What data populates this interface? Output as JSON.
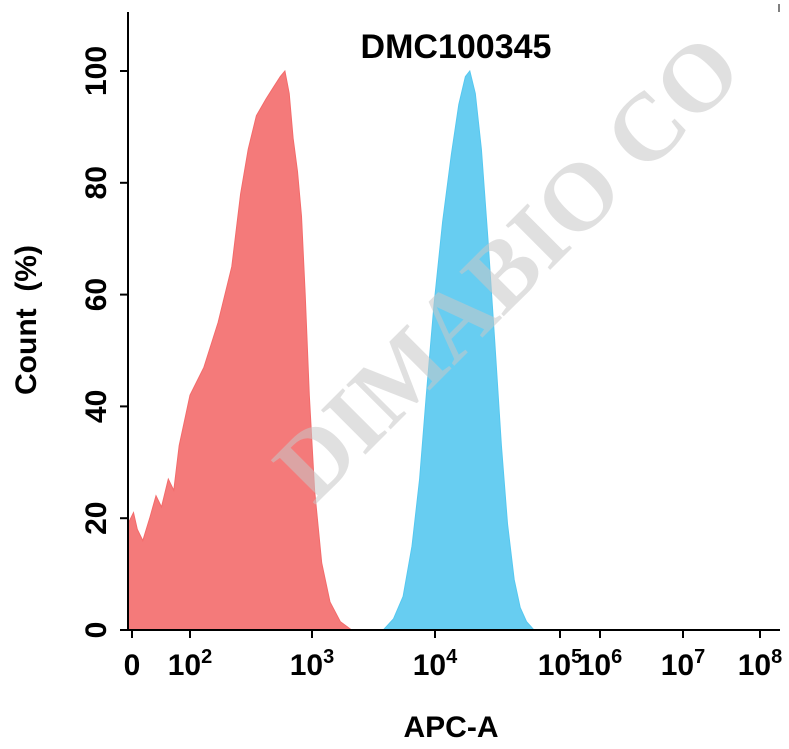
{
  "chart_data": {
    "type": "area",
    "title": "DMC100345",
    "xlabel": "APC-A",
    "ylabel": "Count  (%)",
    "x_scale": "log",
    "ylim": [
      0,
      100
    ],
    "y_ticks": [
      "0",
      "20",
      "40",
      "60",
      "80",
      "100"
    ],
    "x_ticks": [
      {
        "base": "0",
        "exp": ""
      },
      {
        "base": "10",
        "exp": "2"
      },
      {
        "base": "10",
        "exp": "3"
      },
      {
        "base": "10",
        "exp": "4"
      },
      {
        "base": "10",
        "exp": "5"
      },
      {
        "base": "10",
        "exp": "6"
      },
      {
        "base": "10",
        "exp": "7"
      },
      {
        "base": "10",
        "exp": "8"
      }
    ],
    "watermark": "DIMABIO CO",
    "series": [
      {
        "color": "#f36b6b",
        "points": [
          [
            1,
            19
          ],
          [
            1.5,
            21
          ],
          [
            2,
            18
          ],
          [
            3,
            16
          ],
          [
            5,
            20
          ],
          [
            8,
            24
          ],
          [
            12,
            22
          ],
          [
            20,
            27
          ],
          [
            30,
            25
          ],
          [
            45,
            33
          ],
          [
            70,
            38
          ],
          [
            100,
            42
          ],
          [
            130,
            47
          ],
          [
            170,
            55
          ],
          [
            220,
            65
          ],
          [
            260,
            78
          ],
          [
            300,
            86
          ],
          [
            350,
            92
          ],
          [
            420,
            95
          ],
          [
            480,
            97
          ],
          [
            550,
            99
          ],
          [
            600,
            100
          ],
          [
            650,
            96
          ],
          [
            700,
            88
          ],
          [
            760,
            82
          ],
          [
            820,
            74
          ],
          [
            880,
            60
          ],
          [
            950,
            42
          ],
          [
            1050,
            25
          ],
          [
            1200,
            12
          ],
          [
            1400,
            5
          ],
          [
            1700,
            1.5
          ],
          [
            2100,
            0
          ]
        ]
      },
      {
        "color": "#56c8f0",
        "points": [
          [
            3800,
            0
          ],
          [
            4600,
            2
          ],
          [
            5500,
            6
          ],
          [
            6500,
            15
          ],
          [
            7500,
            27
          ],
          [
            8500,
            42
          ],
          [
            9800,
            58
          ],
          [
            11500,
            73
          ],
          [
            13500,
            85
          ],
          [
            15500,
            94
          ],
          [
            17500,
            99
          ],
          [
            19000,
            100
          ],
          [
            21000,
            96
          ],
          [
            23500,
            86
          ],
          [
            26500,
            70
          ],
          [
            30000,
            52
          ],
          [
            34000,
            33
          ],
          [
            38000,
            19
          ],
          [
            43000,
            9
          ],
          [
            48000,
            4
          ],
          [
            54000,
            1.5
          ],
          [
            62000,
            0
          ]
        ]
      }
    ]
  }
}
